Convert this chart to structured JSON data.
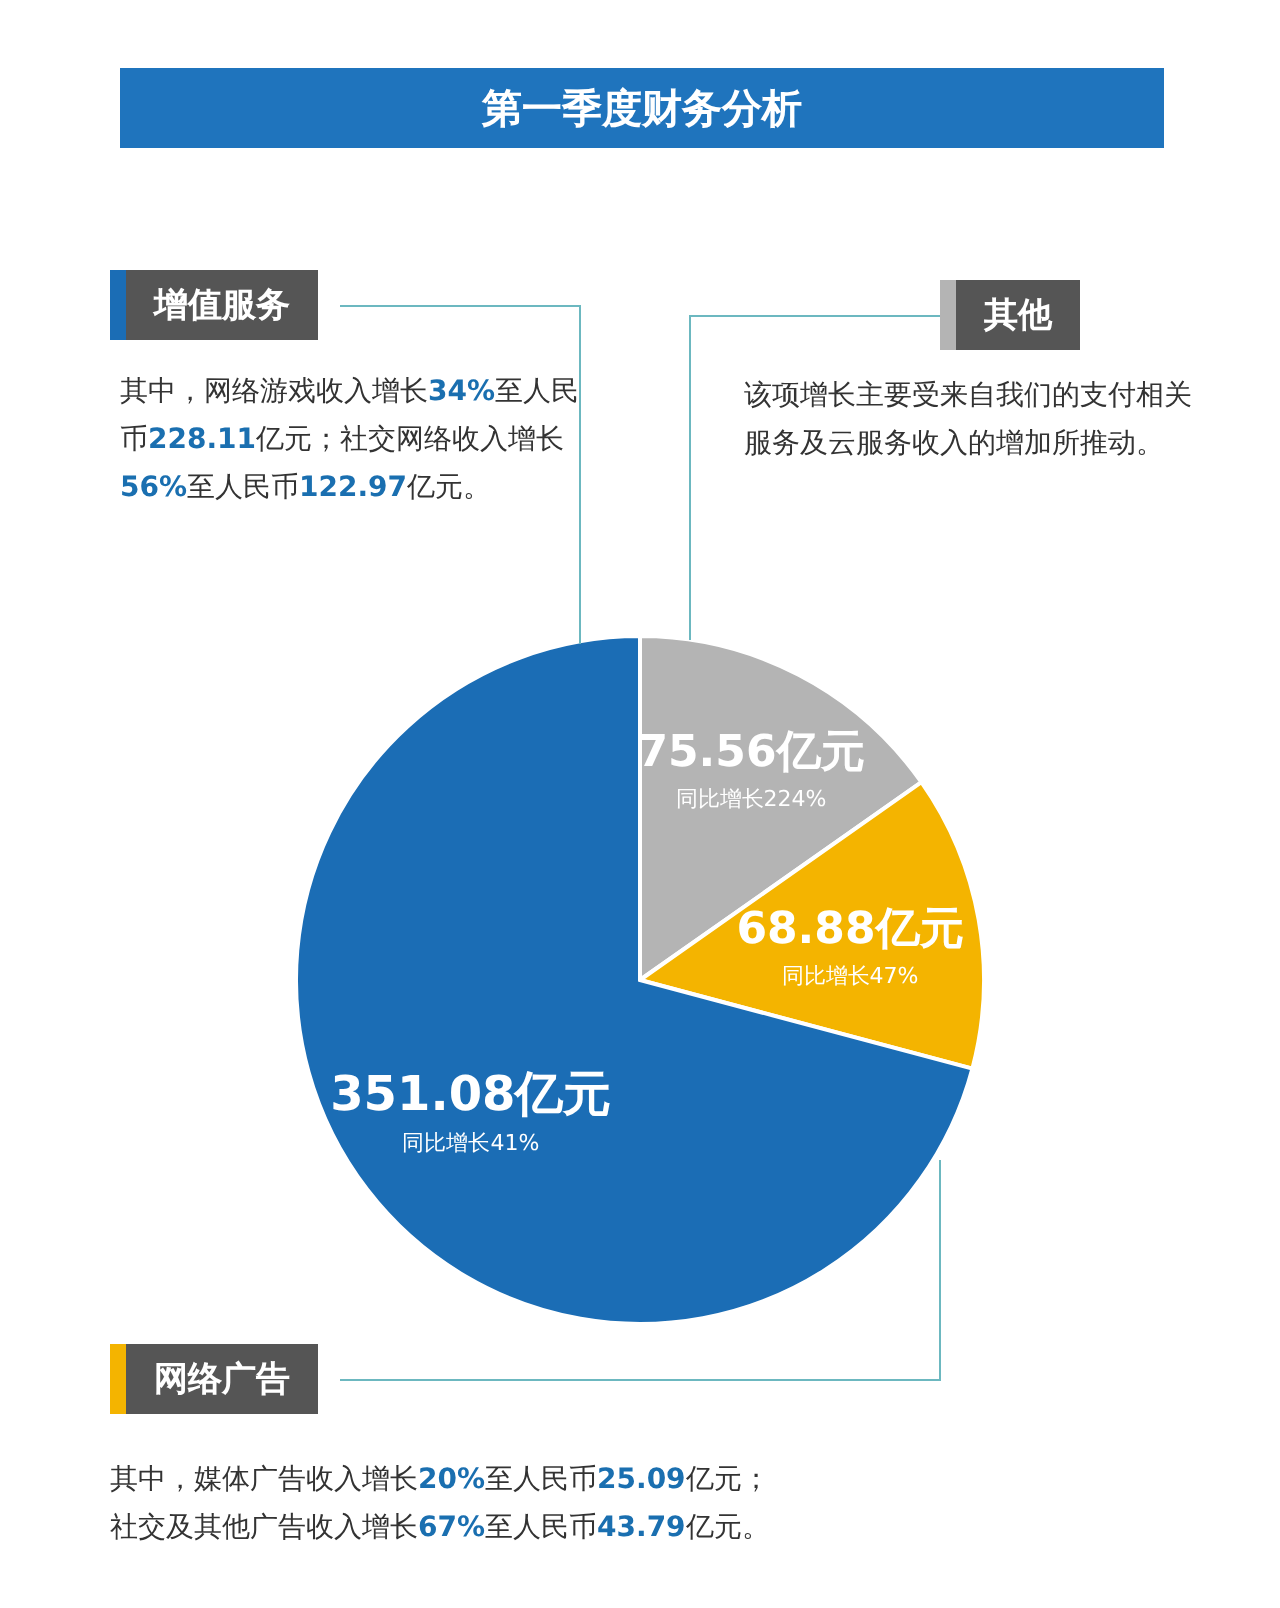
{
  "chart_data": {
    "type": "pie",
    "title": "第一季度财务分析",
    "categories": [
      "其他",
      "网络广告",
      "增值服务"
    ],
    "values": [
      75.56,
      68.88,
      351.08
    ],
    "colors": [
      "#b4b4b4",
      "#f4b400",
      "#1b6db5"
    ],
    "legend": "left",
    "value_labels": [
      "75.56亿元",
      "68.88亿元",
      "351.08亿元"
    ],
    "annotations": [
      {
        "text": "同比增长224%",
        "x": "其他"
      },
      {
        "text": "同比增长47%",
        "x": "网络广告"
      },
      {
        "text": "同比增长41%",
        "x": "增值服务"
      },
      "该项增长主要受来自我们的支付相关服务及云服务收入的增加所推动。",
      "其中，媒体广告收入增长20%至人民币25.09亿元；",
      "社交及其他广告收入增长67%至人民币43.79亿元。",
      "其中，网络游戏收入增长34%至人民币228.11亿元；社交网络收入增长56%至人民币122.97亿元。"
    ]
  }
}
